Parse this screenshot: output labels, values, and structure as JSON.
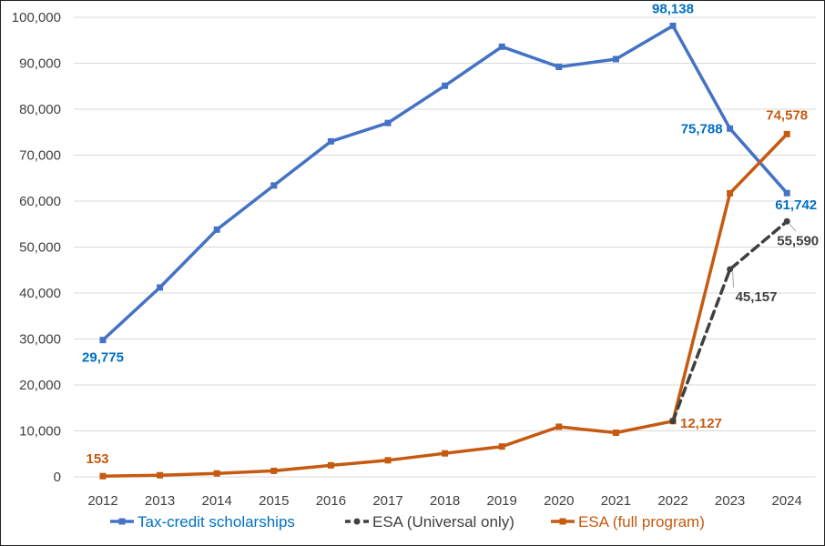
{
  "chart_data": {
    "type": "line",
    "title": "",
    "xlabel": "",
    "ylabel": "",
    "ylim": [
      0,
      100000
    ],
    "grid": true,
    "legend_position": "bottom",
    "x": [
      2012,
      2013,
      2014,
      2015,
      2016,
      2017,
      2018,
      2019,
      2020,
      2021,
      2022,
      2023,
      2024
    ],
    "x_tick_labels": [
      "2012",
      "2013",
      "2014",
      "2015",
      "2016",
      "2017",
      "2018",
      "2019",
      "2020",
      "2021",
      "2022",
      "2023",
      "2024"
    ],
    "y_tick_labels": [
      "0",
      "10,000",
      "20,000",
      "30,000",
      "40,000",
      "50,000",
      "60,000",
      "70,000",
      "80,000",
      "90,000",
      "100,000"
    ],
    "series": [
      {
        "name": "Tax-credit scholarships",
        "color": "#4472C4",
        "label_color": "#0070C0",
        "dashed": false,
        "x": [
          2012,
          2013,
          2014,
          2015,
          2016,
          2017,
          2018,
          2019,
          2020,
          2021,
          2022,
          2023,
          2024
        ],
        "values": [
          29775,
          41200,
          53800,
          63400,
          73000,
          77000,
          85100,
          93600,
          89200,
          90900,
          98138,
          75788,
          61742
        ]
      },
      {
        "name": "ESA (Universal only)",
        "color": "#404040",
        "label_color": "#404040",
        "dashed": true,
        "x": [
          2022,
          2023,
          2024
        ],
        "values": [
          12127,
          45157,
          55590
        ]
      },
      {
        "name": "ESA (full program)",
        "color": "#C55A11",
        "label_color": "#C55A11",
        "dashed": false,
        "x": [
          2012,
          2013,
          2014,
          2015,
          2016,
          2017,
          2018,
          2019,
          2020,
          2021,
          2022,
          2023,
          2024
        ],
        "values": [
          153,
          350,
          750,
          1300,
          2500,
          3600,
          5100,
          6600,
          10900,
          9600,
          12127,
          61700,
          74578
        ]
      }
    ],
    "annotations": [
      {
        "text": "29,775",
        "series": 0,
        "x": 2012
      },
      {
        "text": "98,138",
        "series": 0,
        "x": 2022
      },
      {
        "text": "75,788",
        "series": 0,
        "x": 2023
      },
      {
        "text": "61,742",
        "series": 0,
        "x": 2024
      },
      {
        "text": "45,157",
        "series": 1,
        "x": 2023
      },
      {
        "text": "55,590",
        "series": 1,
        "x": 2024
      },
      {
        "text": "153",
        "series": 2,
        "x": 2012
      },
      {
        "text": "12,127",
        "series": 2,
        "x": 2022
      },
      {
        "text": "74,578",
        "series": 2,
        "x": 2024
      }
    ]
  }
}
